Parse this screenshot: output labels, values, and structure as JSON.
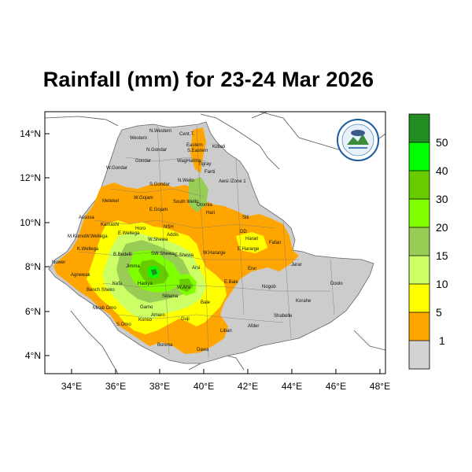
{
  "title": "Rainfall (mm) for 23-24 Mar 2026",
  "map": {
    "lat_ticks": [
      "14°N",
      "12°N",
      "10°N",
      "8°N",
      "6°N",
      "4°N"
    ],
    "lon_ticks": [
      "34°E",
      "36°E",
      "38°E",
      "40°E",
      "42°E",
      "44°E",
      "46°E",
      "48°E"
    ],
    "colors": {
      "background_land": "#cccccc",
      "no_rain": "#d3d3d3",
      "cat_1_5": "#ffa500",
      "cat_5_10": "#ffff00",
      "cat_10_15": "#ccff66",
      "cat_15_20": "#99cc55",
      "cat_20_30": "#7fff00",
      "cat_30_40": "#66cc00",
      "cat_40_50": "#00ff00",
      "cat_50_plus": "#228b22"
    }
  },
  "place_labels": [
    {
      "text": "Western"
    },
    {
      "text": "N.Western"
    },
    {
      "text": "Cent.T."
    },
    {
      "text": "Eastern"
    },
    {
      "text": "N.Gondar"
    },
    {
      "text": "S.Eastern"
    },
    {
      "text": "Kilbati"
    },
    {
      "text": "Gondar"
    },
    {
      "text": "W.Gondar"
    },
    {
      "text": "WagHamra"
    },
    {
      "text": "Tigray"
    },
    {
      "text": "Fanti"
    },
    {
      "text": "Awsi /Zone 1"
    },
    {
      "text": "S.Gondar"
    },
    {
      "text": "N.Wello"
    },
    {
      "text": "Metekel"
    },
    {
      "text": "W.Gojam"
    },
    {
      "text": "E.Gojam"
    },
    {
      "text": "South Wello"
    },
    {
      "text": "Oromia"
    },
    {
      "text": "Assosa"
    },
    {
      "text": "Horo"
    },
    {
      "text": "Kamashi"
    },
    {
      "text": "M.Komo"
    },
    {
      "text": "W.Wellega"
    },
    {
      "text": "E.Wellega"
    },
    {
      "text": "NSH"
    },
    {
      "text": "Addis"
    },
    {
      "text": "W.Shewa"
    },
    {
      "text": "Hari"
    },
    {
      "text": "Siti"
    },
    {
      "text": "DD"
    },
    {
      "text": "Harari"
    },
    {
      "text": "Fafan"
    },
    {
      "text": "W.Hararge"
    },
    {
      "text": "E.Hararge"
    },
    {
      "text": "Jarar"
    },
    {
      "text": "K.Wellega"
    },
    {
      "text": "B.Bedelli"
    },
    {
      "text": "SW Shewa"
    },
    {
      "text": "E.Shewa"
    },
    {
      "text": "Jimma"
    },
    {
      "text": "Arsi"
    },
    {
      "text": "Erer"
    },
    {
      "text": "Agnewak"
    },
    {
      "text": "Kefa"
    },
    {
      "text": "Bench Sheko"
    },
    {
      "text": "Hadiya"
    },
    {
      "text": "W.Arsi"
    },
    {
      "text": "E.Bale"
    },
    {
      "text": "Nogob"
    },
    {
      "text": "Doolo"
    },
    {
      "text": "Nuwer"
    },
    {
      "text": "Mirab Omo"
    },
    {
      "text": "Gamo"
    },
    {
      "text": "Sidama"
    },
    {
      "text": "Bale"
    },
    {
      "text": "Korahe"
    },
    {
      "text": "S.Omo"
    },
    {
      "text": "Konso"
    },
    {
      "text": "Amaro"
    },
    {
      "text": "Guji"
    },
    {
      "text": "Afder"
    },
    {
      "text": "Shabelle"
    },
    {
      "text": "Liban"
    },
    {
      "text": "Borena"
    },
    {
      "text": "Dawa"
    }
  ],
  "colorbar": {
    "labels": [
      "50",
      "40",
      "30",
      "20",
      "15",
      "10",
      "5",
      "1"
    ],
    "colors": [
      "#228b22",
      "#00ff00",
      "#66cc00",
      "#7fff00",
      "#99cc55",
      "#ccff66",
      "#ffff00",
      "#ffa500",
      "#d3d3d3"
    ]
  },
  "logo": {
    "name": "ethiopian-meteorology-institute-logo"
  }
}
